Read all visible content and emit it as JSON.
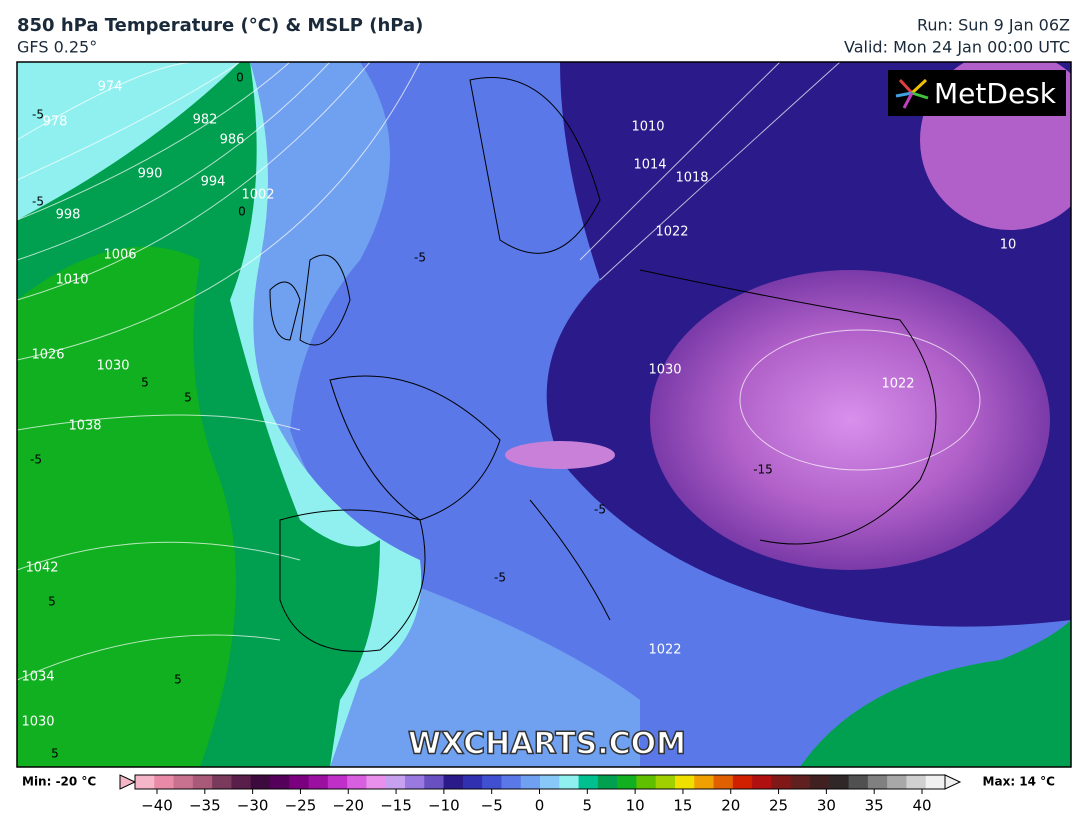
{
  "header": {
    "title": "850 hPa Temperature (°C) & MSLP (hPa)",
    "subtitle": "GFS 0.25°",
    "run": "Run: Sun 9 Jan 06Z",
    "valid": "Valid: Mon 24 Jan 00:00 UTC"
  },
  "map": {
    "isobar_labels": [
      "974",
      "978",
      "982",
      "986",
      "990",
      "994",
      "998",
      "1002",
      "1006",
      "1010",
      "1026",
      "1030",
      "1038",
      "1042",
      "1034",
      "1030",
      "1010",
      "1014",
      "1018",
      "1022",
      "1030",
      "1022",
      "1022",
      "10"
    ],
    "isotherm_labels": [
      "-5",
      "-5",
      "0",
      "5",
      "5",
      "-5",
      "-5",
      "0",
      "5",
      "-15",
      "-5",
      "-5",
      "5",
      "5"
    ],
    "watermark": "WXCHARTS.COM",
    "logo": "MetDesk"
  },
  "colorbar": {
    "min_label": "Min: -20 °C",
    "max_label": "Max: 14 °C",
    "range": [
      -40,
      40
    ],
    "ticks": [
      {
        "value": -40,
        "label": "−40"
      },
      {
        "value": -35,
        "label": "−35"
      },
      {
        "value": -30,
        "label": "−30"
      },
      {
        "value": -25,
        "label": "−25"
      },
      {
        "value": -20,
        "label": "−20"
      },
      {
        "value": -15,
        "label": "−15"
      },
      {
        "value": -10,
        "label": "−10"
      },
      {
        "value": -5,
        "label": "−5"
      },
      0,
      5,
      10,
      15,
      20,
      25,
      30,
      35,
      40
    ],
    "colors": [
      "#f4b6c8",
      "#e88aa8",
      "#c9728f",
      "#a85a78",
      "#7a3a5c",
      "#5a1e4a",
      "#3c0a3c",
      "#55005a",
      "#7a007f",
      "#9b10a0",
      "#c030c8",
      "#d860e0",
      "#e890ec",
      "#c8a0f0",
      "#9a7ae0",
      "#6850c0",
      "#2a1a8a",
      "#3030b0",
      "#4050d0",
      "#5a78e8",
      "#70a0f0",
      "#88c8f8",
      "#90f0f0",
      "#00c090",
      "#00a050",
      "#10b020",
      "#60c000",
      "#a0d000",
      "#f0e000",
      "#f0a000",
      "#e06000",
      "#d02000",
      "#b01010",
      "#801818",
      "#602020",
      "#402020",
      "#302828",
      "#505050",
      "#808080",
      "#a8a8a8",
      "#d0d0d0",
      "#f0f0f0"
    ]
  }
}
